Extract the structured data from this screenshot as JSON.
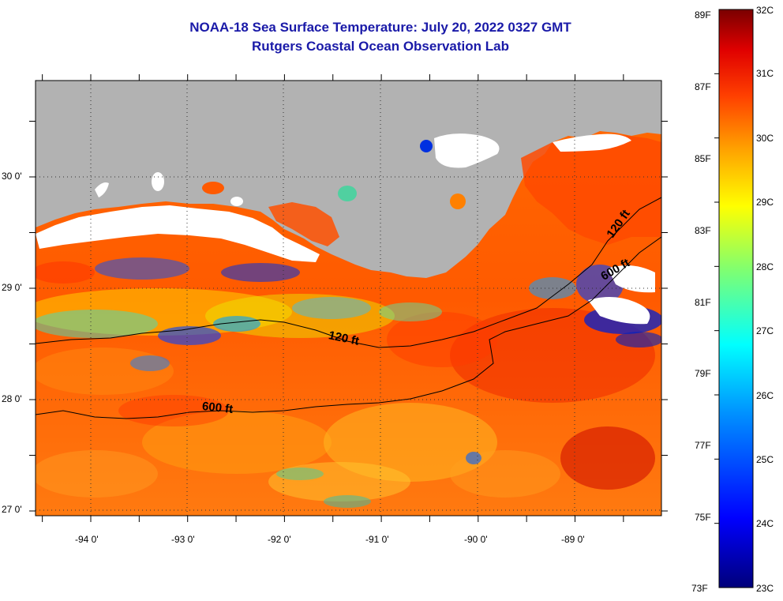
{
  "title": {
    "line1": "NOAA-18 Sea Surface Temperature:  July 20, 2022 0327 GMT",
    "line2": "Rutgers Coastal Ocean Observation Lab"
  },
  "map": {
    "lat_labels": [
      "30 0'",
      "29 0'",
      "28 0'",
      "27 0'"
    ],
    "lon_labels": [
      "-94 0'",
      "-93 0'",
      "-92 0'",
      "-91 0'",
      "-90 0'",
      "-89 0'"
    ],
    "contour_labels": [
      "120 ft",
      "600 ft",
      "120 ft",
      "600 ft"
    ],
    "land_color": "#b2b2b2",
    "cloud_color": "#ffffff"
  },
  "colorbar": {
    "fahrenheit_labels": [
      "89F",
      "87F",
      "85F",
      "83F",
      "81F",
      "79F",
      "77F",
      "75F",
      "73F"
    ],
    "celsius_labels": [
      "32C",
      "31C",
      "30C",
      "29C",
      "28C",
      "27C",
      "26C",
      "25C",
      "24C",
      "23C"
    ],
    "colors": [
      "#000088",
      "#0000ff",
      "#0080ff",
      "#00ffff",
      "#80ff80",
      "#ffff00",
      "#ff8000",
      "#ff0000",
      "#800000"
    ]
  }
}
